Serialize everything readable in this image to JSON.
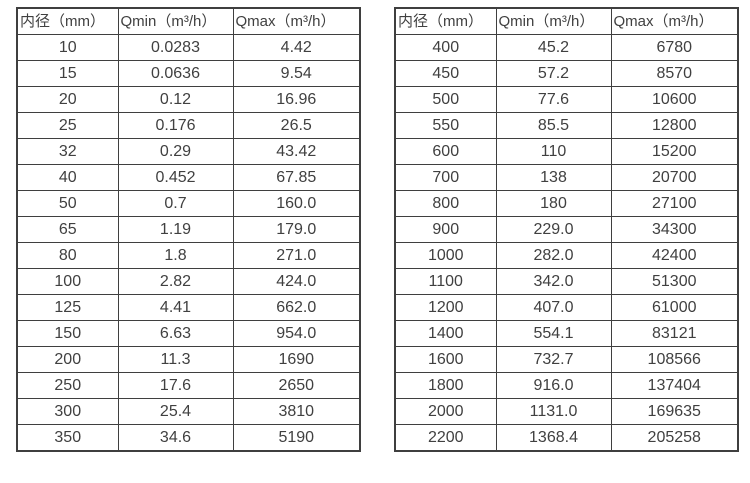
{
  "colors": {
    "background": "#ffffff",
    "text": "#404040",
    "border": "#3f3f3f"
  },
  "tables": [
    {
      "headers": [
        "内径（mm）",
        "Qmin（m³/h）",
        "Qmax（m³/h）"
      ],
      "rows": [
        [
          "10",
          "0.0283",
          "4.42"
        ],
        [
          "15",
          "0.0636",
          "9.54"
        ],
        [
          "20",
          "0.12",
          "16.96"
        ],
        [
          "25",
          "0.176",
          "26.5"
        ],
        [
          "32",
          "0.29",
          "43.42"
        ],
        [
          "40",
          "0.452",
          "67.85"
        ],
        [
          "50",
          "0.7",
          "160.0"
        ],
        [
          "65",
          "1.19",
          "179.0"
        ],
        [
          "80",
          "1.8",
          "271.0"
        ],
        [
          "100",
          "2.82",
          "424.0"
        ],
        [
          "125",
          "4.41",
          "662.0"
        ],
        [
          "150",
          "6.63",
          "954.0"
        ],
        [
          "200",
          "11.3",
          "1690"
        ],
        [
          "250",
          "17.6",
          "2650"
        ],
        [
          "300",
          "25.4",
          "3810"
        ],
        [
          "350",
          "34.6",
          "5190"
        ]
      ]
    },
    {
      "headers": [
        "内径（mm）",
        "Qmin（m³/h）",
        "Qmax（m³/h）"
      ],
      "rows": [
        [
          "400",
          "45.2",
          "6780"
        ],
        [
          "450",
          "57.2",
          "8570"
        ],
        [
          "500",
          "77.6",
          "10600"
        ],
        [
          "550",
          "85.5",
          "12800"
        ],
        [
          "600",
          "110",
          "15200"
        ],
        [
          "700",
          "138",
          "20700"
        ],
        [
          "800",
          "180",
          "27100"
        ],
        [
          "900",
          "229.0",
          "34300"
        ],
        [
          "1000",
          "282.0",
          "42400"
        ],
        [
          "1100",
          "342.0",
          "51300"
        ],
        [
          "1200",
          "407.0",
          "61000"
        ],
        [
          "1400",
          "554.1",
          "83121"
        ],
        [
          "1600",
          "732.7",
          "108566"
        ],
        [
          "1800",
          "916.0",
          "137404"
        ],
        [
          "2000",
          "1131.0",
          "169635"
        ],
        [
          "2200",
          "1368.4",
          "205258"
        ]
      ]
    }
  ]
}
